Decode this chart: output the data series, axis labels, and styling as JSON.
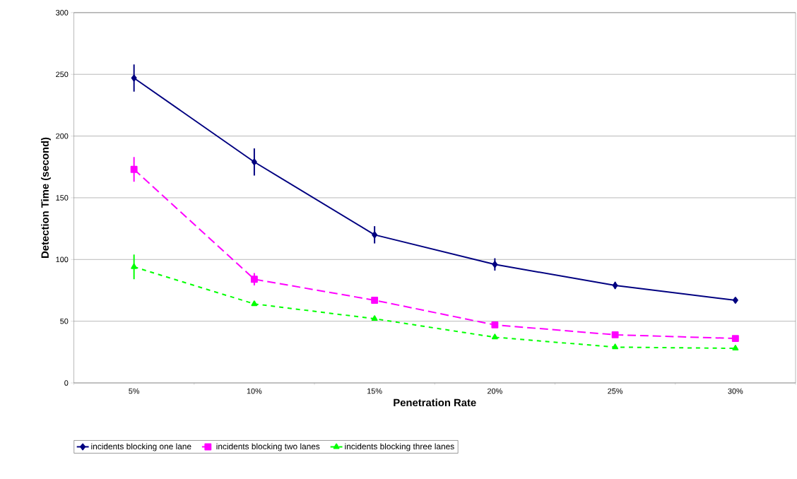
{
  "chart_data": {
    "type": "line",
    "xlabel": "Penetration Rate",
    "ylabel": "Detection Time (second)",
    "categories": [
      "5%",
      "10%",
      "15%",
      "20%",
      "25%",
      "30%"
    ],
    "ylim": [
      0,
      300
    ],
    "yticks": [
      0,
      50,
      100,
      150,
      200,
      250,
      300
    ],
    "grid": "y",
    "legend": "bottom",
    "series": [
      {
        "name": "incidents blocking one lane",
        "color": "#000080",
        "marker": "diamond",
        "line_style": "solid",
        "values": [
          247,
          179,
          120,
          96,
          79,
          67
        ],
        "errors": [
          11,
          11,
          7,
          5,
          3,
          2
        ]
      },
      {
        "name": "incidents blocking two lanes",
        "color": "#ff00ff",
        "marker": "square",
        "line_style": "dashed",
        "values": [
          173,
          84,
          67,
          47,
          39,
          36
        ],
        "errors": [
          10,
          5,
          null,
          null,
          null,
          null
        ]
      },
      {
        "name": "incidents blocking three lanes",
        "color": "#00ff00",
        "marker": "triangle",
        "line_style": "dotted",
        "values": [
          94,
          64,
          52,
          37,
          29,
          28
        ],
        "errors": [
          10,
          null,
          null,
          null,
          null,
          null
        ]
      }
    ]
  }
}
